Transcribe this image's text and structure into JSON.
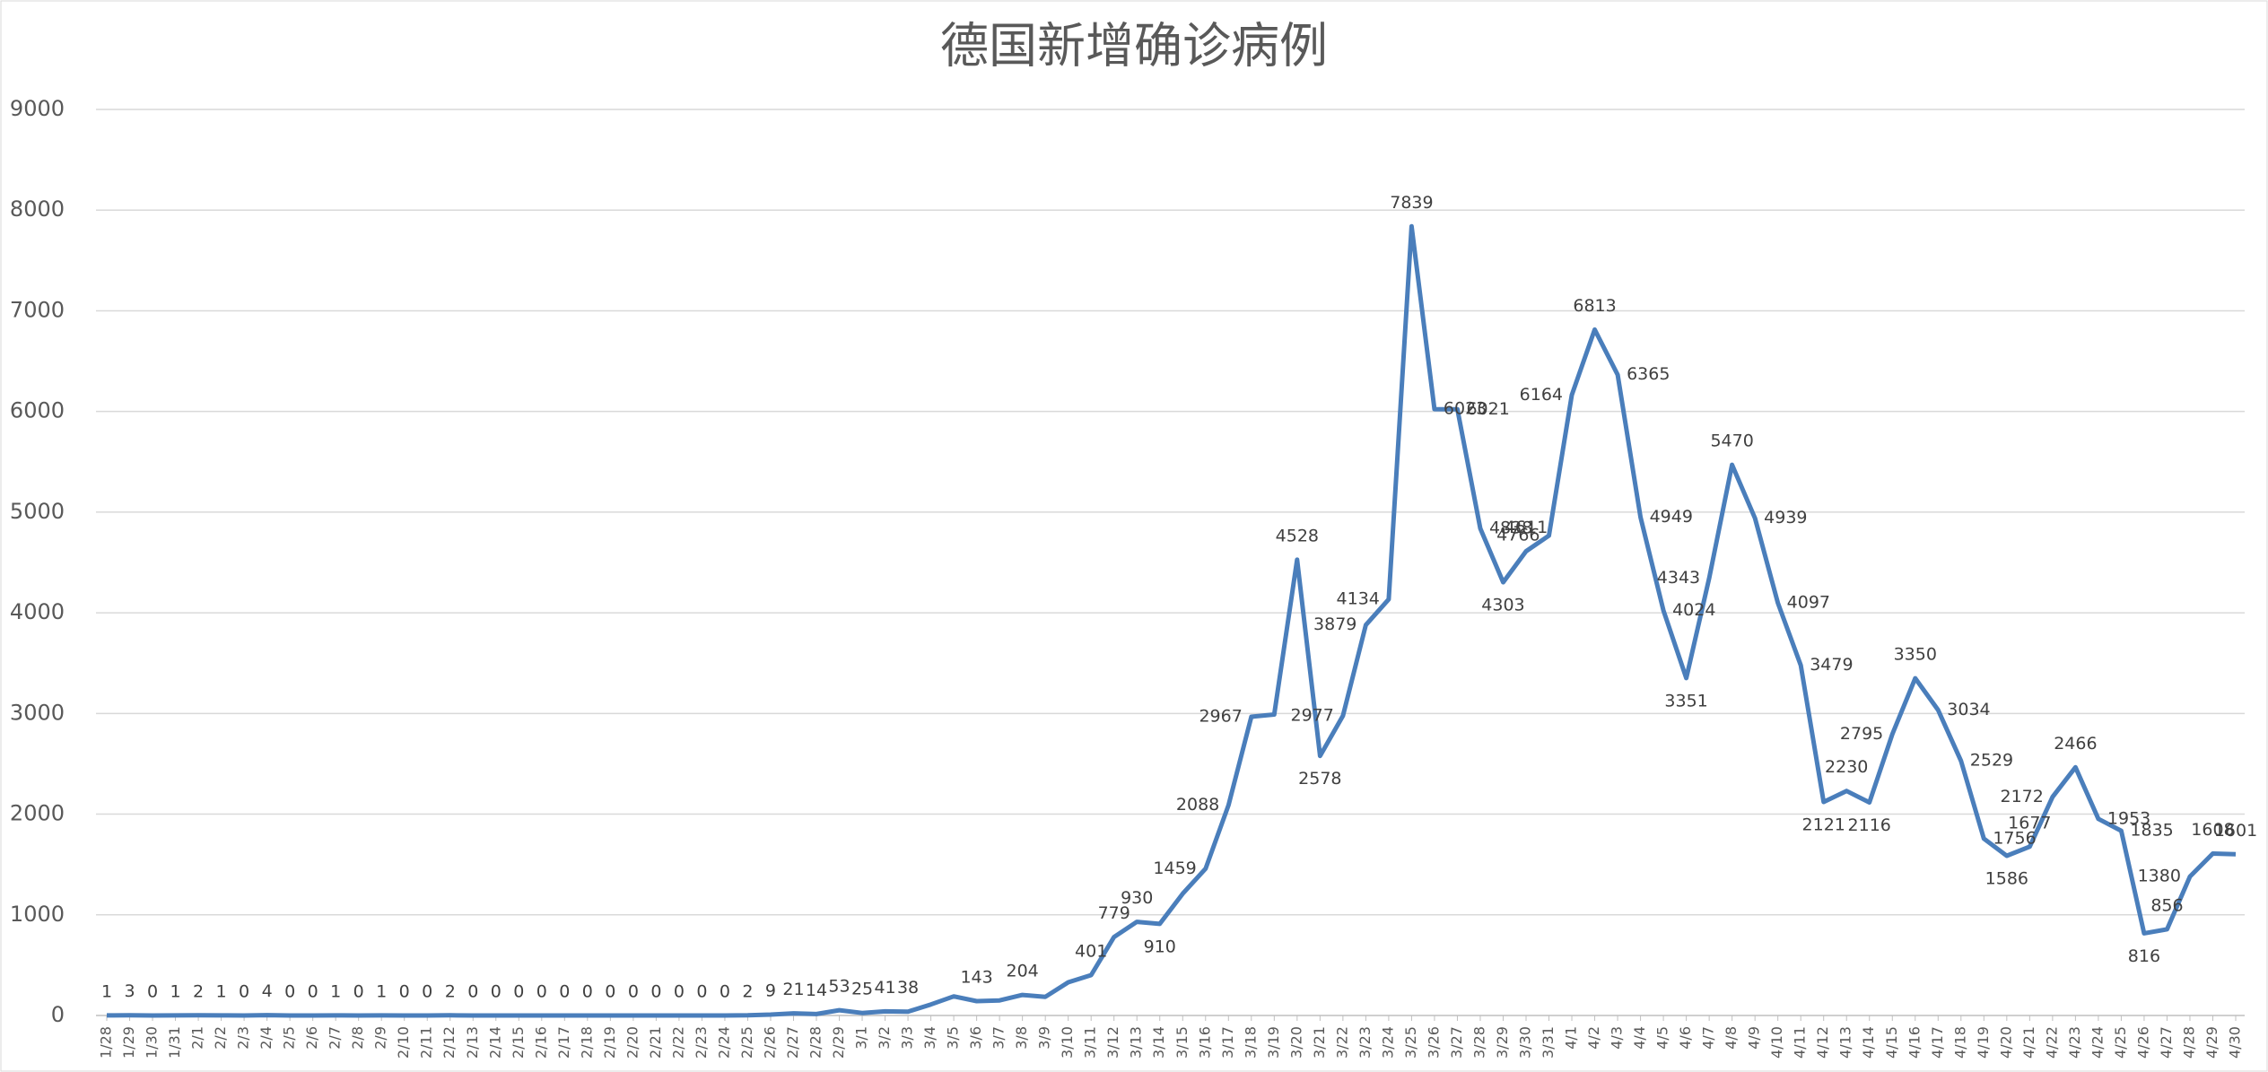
{
  "chart_data": {
    "type": "line",
    "title": "德国新增确诊病例",
    "categories": [
      "1/28",
      "1/29",
      "1/30",
      "1/31",
      "2/1",
      "2/2",
      "2/3",
      "2/4",
      "2/5",
      "2/6",
      "2/7",
      "2/8",
      "2/9",
      "2/10",
      "2/11",
      "2/12",
      "2/13",
      "2/14",
      "2/15",
      "2/16",
      "2/17",
      "2/18",
      "2/19",
      "2/20",
      "2/21",
      "2/22",
      "2/23",
      "2/24",
      "2/25",
      "2/26",
      "2/27",
      "2/28",
      "2/29",
      "3/1",
      "3/2",
      "3/3",
      "3/4",
      "3/5",
      "3/6",
      "3/7",
      "3/8",
      "3/9",
      "3/10",
      "3/11",
      "3/12",
      "3/13",
      "3/14",
      "3/15",
      "3/16",
      "3/17",
      "3/18",
      "3/19",
      "3/20",
      "3/21",
      "3/22",
      "3/23",
      "3/24",
      "3/25",
      "3/26",
      "3/27",
      "3/28",
      "3/29",
      "3/30",
      "3/31",
      "4/1",
      "4/2",
      "4/3",
      "4/4",
      "4/5",
      "4/6",
      "4/7",
      "4/8",
      "4/9",
      "4/10",
      "4/11",
      "4/12",
      "4/13",
      "4/14",
      "4/15",
      "4/16",
      "4/17",
      "4/18",
      "4/19",
      "4/20",
      "4/21",
      "4/22",
      "4/23",
      "4/24",
      "4/25",
      "4/26",
      "4/27",
      "4/28",
      "4/29",
      "4/30"
    ],
    "series": [
      {
        "color": "#4a7ebb",
        "values": [
          1,
          3,
          0,
          1,
          2,
          1,
          0,
          4,
          0,
          0,
          1,
          0,
          1,
          0,
          0,
          2,
          0,
          0,
          0,
          0,
          0,
          0,
          0,
          0,
          0,
          0,
          0,
          0,
          2,
          9,
          21,
          14,
          53,
          25,
          41,
          38,
          110,
          190,
          143,
          150,
          204,
          185,
          330,
          401,
          779,
          930,
          910,
          1210,
          1459,
          2088,
          2967,
          2990,
          4528,
          2578,
          2977,
          3879,
          4134,
          7839,
          6023,
          6021,
          4838,
          4303,
          4611,
          4766,
          6164,
          6813,
          6365,
          4949,
          4024,
          3351,
          4343,
          5470,
          4939,
          4097,
          3479,
          2121,
          2230,
          2116,
          2795,
          3350,
          3034,
          2529,
          1756,
          1586,
          1677,
          2172,
          2466,
          1953,
          1835,
          816,
          856,
          1380,
          1608,
          1601
        ],
        "value_labels": [
          "1",
          "3",
          "0",
          "1",
          "2",
          "1",
          "0",
          "4",
          "0",
          "0",
          "1",
          "0",
          "1",
          "0",
          "0",
          "2",
          "0",
          "0",
          "0",
          "0",
          "0",
          "0",
          "0",
          "0",
          "0",
          "0",
          "0",
          "0",
          "2",
          "9",
          "21",
          "14",
          "53",
          "25",
          "41",
          "38",
          null,
          null,
          "143",
          null,
          "204",
          null,
          null,
          "401",
          "779",
          "930",
          "910",
          null,
          "1459",
          "2088",
          "2967",
          null,
          "4528",
          "2578",
          "2977",
          "3879",
          "4134",
          "7839",
          "6023",
          "6021",
          "4838",
          "4303",
          "4611",
          "4766",
          "6164",
          "6813",
          "6365",
          "4949",
          "4024",
          "3351",
          "4343",
          "5470",
          "4939",
          "4097",
          "3479",
          "2121",
          "2230",
          "2116",
          "2795",
          "3350",
          "3034",
          "2529",
          "1756",
          "1586",
          "1677",
          "2172",
          "2466",
          "1953",
          "1835",
          "816",
          "856",
          "1380",
          "1608",
          "1601"
        ]
      }
    ],
    "ylim": [
      0,
      9000
    ],
    "yticks": [
      0,
      1000,
      2000,
      3000,
      4000,
      5000,
      6000,
      7000,
      8000,
      9000
    ],
    "grid": true
  }
}
